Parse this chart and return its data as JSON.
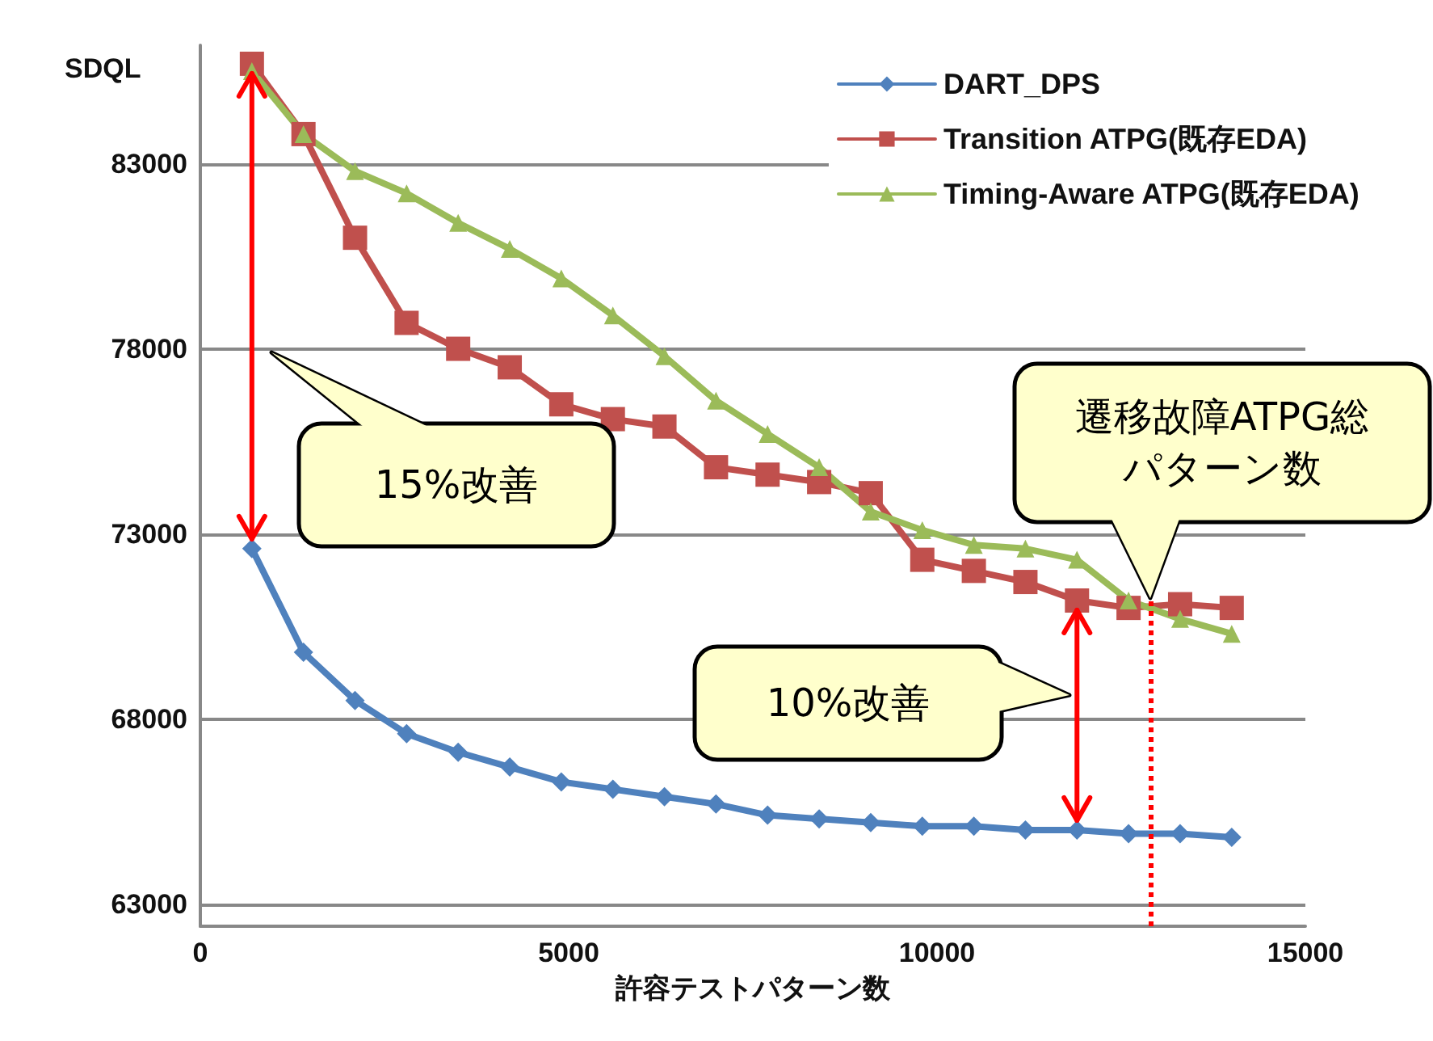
{
  "chart_data": {
    "type": "line",
    "ylabel": "SDQL",
    "xlabel": "許容テストパターン数",
    "xlim": [
      0,
      15000
    ],
    "xticks": [
      0,
      5000,
      10000,
      15000
    ],
    "ylim": [
      62400,
      86200
    ],
    "yticks": [
      63000,
      68000,
      73000,
      78000,
      83000
    ],
    "grid": "y",
    "legend": "top right",
    "line_style": "solid",
    "series": [
      {
        "name": "DART_DPS",
        "color": "#4f81bd",
        "marker": "diamond",
        "x": [
          700,
          1400,
          2100,
          2800,
          3500,
          4200,
          4900,
          5600,
          6300,
          7000,
          7700,
          8400,
          9100,
          9800,
          10500,
          11200,
          11900,
          12600,
          13300,
          14000
        ],
        "values": [
          72600,
          69800,
          68500,
          67600,
          67100,
          66700,
          66300,
          66100,
          65900,
          65700,
          65400,
          65300,
          65200,
          65100,
          65100,
          65000,
          65000,
          64900,
          64900,
          64800
        ]
      },
      {
        "name": "Transition ATPG(既存EDA)",
        "color": "#c0504d",
        "marker": "square",
        "x": [
          700,
          1400,
          2100,
          2800,
          3500,
          4200,
          4900,
          5600,
          6300,
          7000,
          7700,
          8400,
          9100,
          9800,
          10500,
          11200,
          11900,
          12600,
          13300,
          14000
        ],
        "values": [
          85700,
          83800,
          81000,
          78700,
          78000,
          77500,
          76500,
          76100,
          75900,
          74800,
          74600,
          74400,
          74100,
          72300,
          72000,
          71700,
          71200,
          71000,
          71100,
          71000
        ]
      },
      {
        "name": "Timing-Aware ATPG(既存EDA)",
        "color": "#9bbb59",
        "marker": "triangle",
        "x": [
          700,
          1400,
          2100,
          2800,
          3500,
          4200,
          4900,
          5600,
          6300,
          7000,
          7700,
          8400,
          9100,
          9800,
          10500,
          11200,
          11900,
          12600,
          13300,
          14000
        ],
        "values": [
          85500,
          83800,
          82800,
          82200,
          81400,
          80700,
          79900,
          78900,
          77800,
          76600,
          75700,
          74800,
          73600,
          73100,
          72700,
          72600,
          72300,
          71200,
          70700,
          70300
        ]
      }
    ],
    "ref_lines": [
      {
        "axis": "x",
        "value": 12900,
        "color": "#ff0000",
        "line_style": "dotted"
      }
    ],
    "annotations": [
      "15%改善",
      "遷移故障ATPG総パターン数",
      "10%改善"
    ]
  }
}
